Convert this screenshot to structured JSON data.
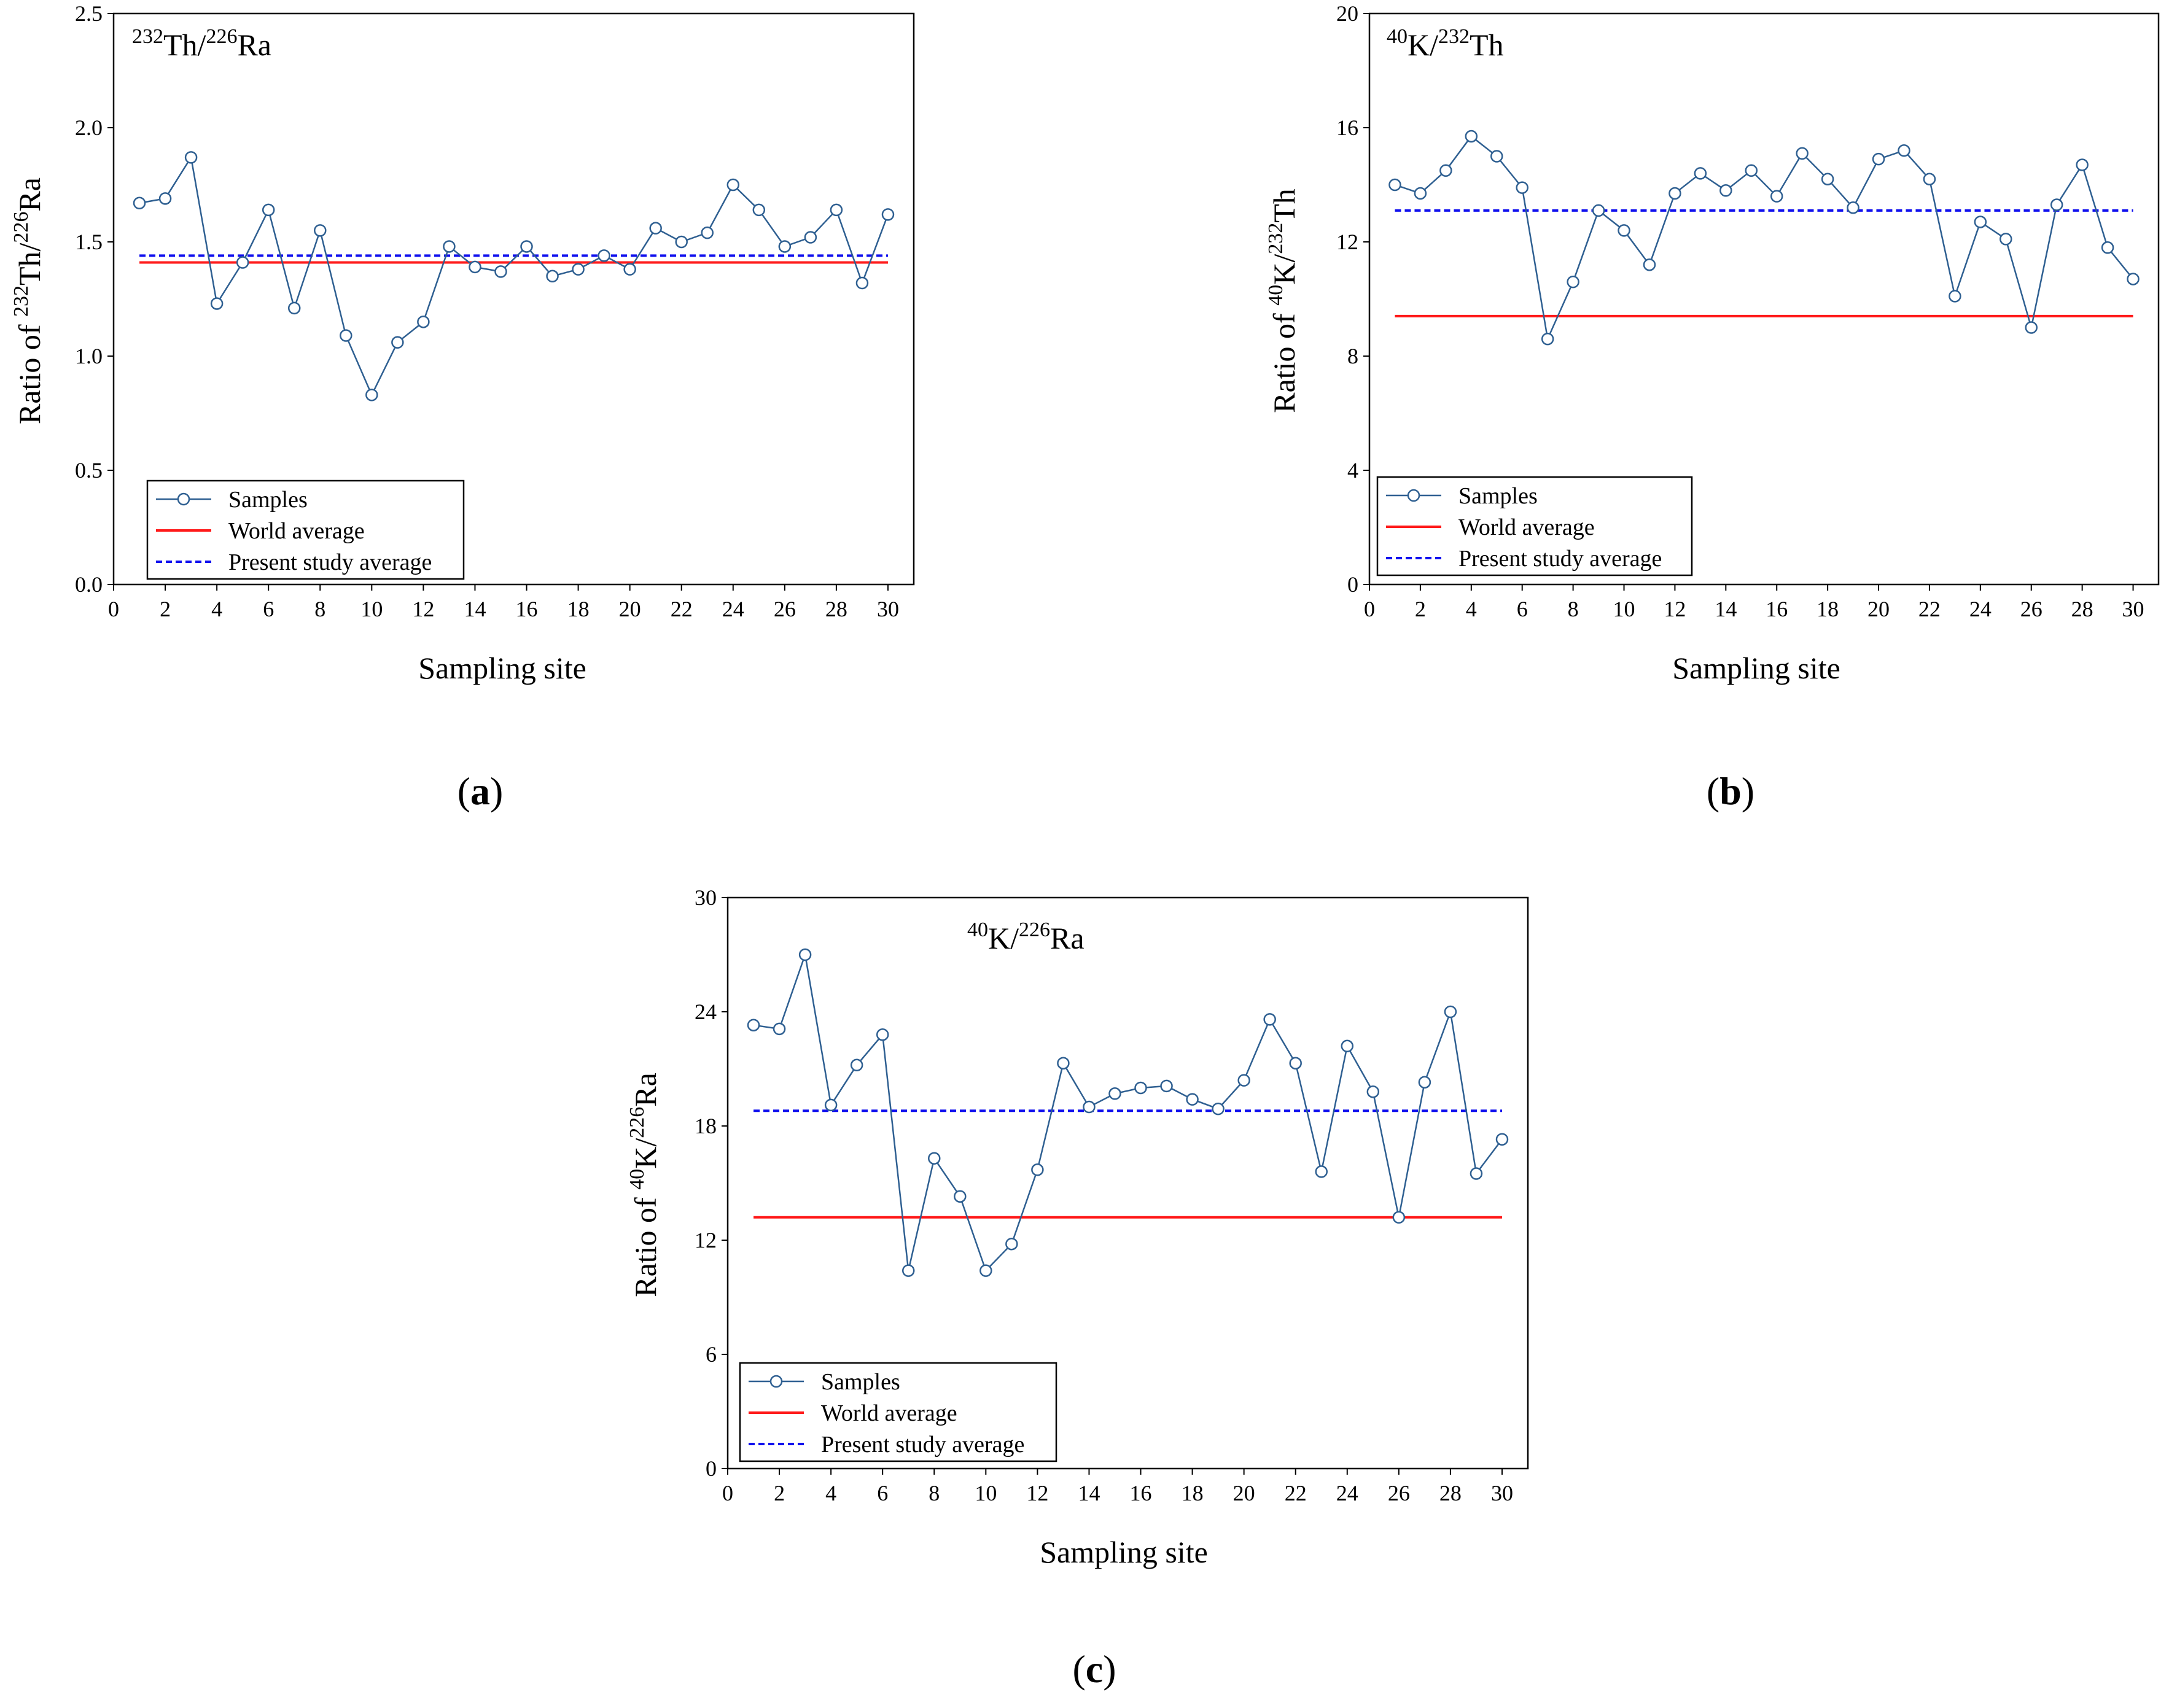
{
  "chart_data": [
    {
      "type": "line",
      "caption": "(a)",
      "caption_letter": "a",
      "title": {
        "base1": "Th/",
        "sup1": "232",
        "base2": "Ra",
        "sup2": "226"
      },
      "xlabel": "Sampling site",
      "ylabel": {
        "pre": "Ratio of ",
        "sup1": "232",
        "mid": "Th/",
        "sup2": "226",
        "post": "Ra"
      },
      "xlim": [
        0,
        31
      ],
      "ylim": [
        0,
        2.5
      ],
      "xticks": [
        "0",
        "2",
        "4",
        "6",
        "8",
        "10",
        "12",
        "14",
        "16",
        "18",
        "20",
        "22",
        "24",
        "26",
        "28",
        "30"
      ],
      "yticks": [
        "0.0",
        "0.5",
        "1.0",
        "1.5",
        "2.0",
        "2.5"
      ],
      "x": [
        1,
        2,
        3,
        4,
        5,
        6,
        7,
        8,
        9,
        10,
        11,
        12,
        13,
        14,
        15,
        16,
        17,
        18,
        19,
        20,
        21,
        22,
        23,
        24,
        25,
        26,
        27,
        28,
        29,
        30
      ],
      "series": [
        {
          "name": "Samples",
          "color": "#2e5f91",
          "values": [
            1.67,
            1.69,
            1.87,
            1.23,
            1.41,
            1.64,
            1.21,
            1.55,
            1.09,
            0.83,
            1.06,
            1.15,
            1.48,
            1.39,
            1.37,
            1.48,
            1.35,
            1.38,
            1.44,
            1.38,
            1.56,
            1.5,
            1.54,
            1.75,
            1.64,
            1.48,
            1.52,
            1.64,
            1.32,
            1.62
          ]
        },
        {
          "name": "World average",
          "color": "#ff1a1a",
          "constant": 1.41
        },
        {
          "name": "Present study average",
          "color": "#1010ee",
          "constant": 1.44
        }
      ],
      "legend": [
        "Samples",
        "World average",
        "Present study average"
      ]
    },
    {
      "type": "line",
      "caption": "(b)",
      "caption_letter": "b",
      "title": {
        "base1": "K/",
        "sup1": "40",
        "base2": "Th",
        "sup2": "232"
      },
      "xlabel": "Sampling site",
      "ylabel": {
        "pre": "Ratio of ",
        "sup1": "40",
        "mid": "K/",
        "sup2": "232",
        "post": "Th"
      },
      "xlim": [
        0,
        31
      ],
      "ylim": [
        0,
        20
      ],
      "xticks": [
        "0",
        "2",
        "4",
        "6",
        "8",
        "10",
        "12",
        "14",
        "16",
        "18",
        "20",
        "22",
        "24",
        "26",
        "28",
        "30"
      ],
      "yticks": [
        "0",
        "4",
        "8",
        "12",
        "16",
        "20"
      ],
      "x": [
        1,
        2,
        3,
        4,
        5,
        6,
        7,
        8,
        9,
        10,
        11,
        12,
        13,
        14,
        15,
        16,
        17,
        18,
        19,
        20,
        21,
        22,
        23,
        24,
        25,
        26,
        27,
        28,
        29,
        30
      ],
      "series": [
        {
          "name": "Samples",
          "color": "#2e5f91",
          "values": [
            14.0,
            13.7,
            14.5,
            15.7,
            15.0,
            13.9,
            8.6,
            10.6,
            13.1,
            12.4,
            11.2,
            13.7,
            14.4,
            13.8,
            14.5,
            13.6,
            15.1,
            14.2,
            13.2,
            14.9,
            15.2,
            14.2,
            10.1,
            12.7,
            12.1,
            9.0,
            13.3,
            14.7,
            11.8,
            10.7
          ]
        },
        {
          "name": "World average",
          "color": "#ff1a1a",
          "constant": 9.4
        },
        {
          "name": "Present study average",
          "color": "#1010ee",
          "constant": 13.1
        }
      ],
      "legend": [
        "Samples",
        "World average",
        "Present study average"
      ]
    },
    {
      "type": "line",
      "caption": "(c)",
      "caption_letter": "c",
      "title": {
        "base1": "K/",
        "sup1": "40",
        "base2": "Ra",
        "sup2": "226"
      },
      "xlabel": "Sampling site",
      "ylabel": {
        "pre": "Ratio of ",
        "sup1": "40",
        "mid": "K/",
        "sup2": "226",
        "post": "Ra"
      },
      "xlim": [
        0,
        31
      ],
      "ylim": [
        0,
        30
      ],
      "xticks": [
        "0",
        "2",
        "4",
        "6",
        "8",
        "10",
        "12",
        "14",
        "16",
        "18",
        "20",
        "22",
        "24",
        "26",
        "28",
        "30"
      ],
      "yticks": [
        "0",
        "6",
        "12",
        "18",
        "24",
        "30"
      ],
      "x": [
        1,
        2,
        3,
        4,
        5,
        6,
        7,
        8,
        9,
        10,
        11,
        12,
        13,
        14,
        15,
        16,
        17,
        18,
        19,
        20,
        21,
        22,
        23,
        24,
        25,
        26,
        27,
        28,
        29,
        30
      ],
      "series": [
        {
          "name": "Samples",
          "color": "#2e5f91",
          "values": [
            23.3,
            23.1,
            27.0,
            19.1,
            21.2,
            22.8,
            10.4,
            16.3,
            14.3,
            10.4,
            11.8,
            15.7,
            21.3,
            19.0,
            19.7,
            20.0,
            20.1,
            19.4,
            18.9,
            20.4,
            23.6,
            21.3,
            15.6,
            22.2,
            19.8,
            13.2,
            20.3,
            24.0,
            15.5,
            17.3
          ]
        },
        {
          "name": "World average",
          "color": "#ff1a1a",
          "constant": 13.2
        },
        {
          "name": "Present study average",
          "color": "#1010ee",
          "constant": 18.8
        }
      ],
      "legend": [
        "Samples",
        "World average",
        "Present study average"
      ]
    }
  ]
}
